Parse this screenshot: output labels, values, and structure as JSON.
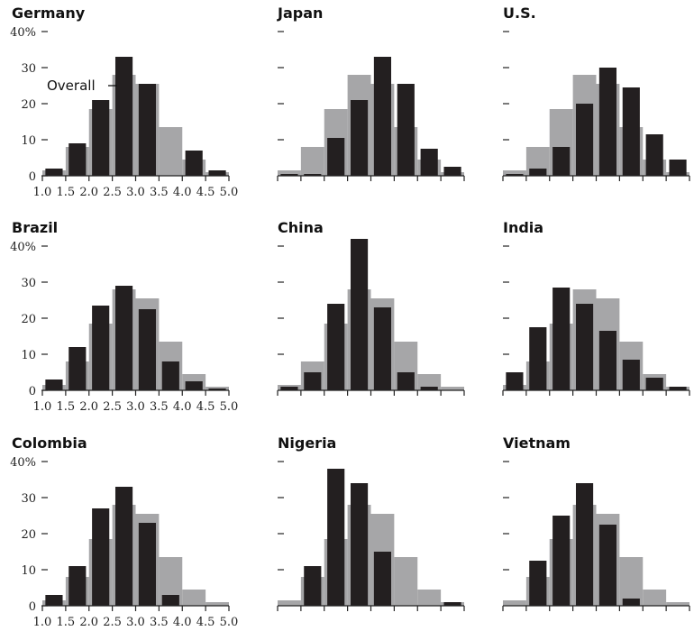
{
  "chart_data": {
    "type": "bar",
    "bins": [
      "1.0",
      "1.5",
      "2.0",
      "2.5",
      "3.0",
      "3.5",
      "4.0",
      "4.5",
      "5.0"
    ],
    "y_ticks": [
      "40%",
      "30",
      "20",
      "10",
      "0"
    ],
    "ylim": [
      0,
      40
    ],
    "annotation": "Overall",
    "colors": {
      "overall": "#a6a6a8",
      "country": "#231f20"
    },
    "panels": [
      {
        "title": "Germany",
        "show_tick_labels": true,
        "overall": [
          1.5,
          8,
          18.5,
          28,
          25.5,
          13.5,
          4.5,
          1
        ],
        "country": [
          2,
          9,
          21,
          33,
          25.5,
          0,
          7,
          1.5
        ]
      },
      {
        "title": "Japan",
        "show_tick_labels": false,
        "overall": [
          1.5,
          8,
          18.5,
          28,
          25.5,
          13.5,
          4.5,
          1
        ],
        "country": [
          0.5,
          0.5,
          10.5,
          21,
          33,
          25.5,
          7.5,
          2.5
        ]
      },
      {
        "title": "U.S.",
        "show_tick_labels": false,
        "overall": [
          1.5,
          8,
          18.5,
          28,
          25.5,
          13.5,
          4.5,
          1
        ],
        "country": [
          0.5,
          2,
          8,
          20,
          30,
          24.5,
          11.5,
          4.5
        ]
      },
      {
        "title": "Brazil",
        "show_tick_labels": true,
        "overall": [
          1.5,
          8,
          18.5,
          28,
          25.5,
          13.5,
          4.5,
          1
        ],
        "country": [
          3,
          12,
          23.5,
          29,
          22.5,
          8,
          2.5,
          0.5
        ]
      },
      {
        "title": "China",
        "show_tick_labels": false,
        "overall": [
          1.5,
          8,
          18.5,
          28,
          25.5,
          13.5,
          4.5,
          1
        ],
        "country": [
          1,
          5,
          24,
          42,
          23,
          5,
          1,
          0
        ]
      },
      {
        "title": "India",
        "show_tick_labels": false,
        "overall": [
          1.5,
          8,
          18.5,
          28,
          25.5,
          13.5,
          4.5,
          1
        ],
        "country": [
          5,
          17.5,
          28.5,
          24,
          16.5,
          8.5,
          3.5,
          1
        ]
      },
      {
        "title": "Colombia",
        "show_tick_labels": true,
        "overall": [
          1.5,
          8,
          18.5,
          28,
          25.5,
          13.5,
          4.5,
          1
        ],
        "country": [
          3,
          11,
          27,
          33,
          23,
          3,
          0,
          0
        ]
      },
      {
        "title": "Nigeria",
        "show_tick_labels": false,
        "overall": [
          1.5,
          8,
          18.5,
          28,
          25.5,
          13.5,
          4.5,
          1
        ],
        "country": [
          0,
          11,
          38,
          34,
          15,
          0,
          0,
          1
        ]
      },
      {
        "title": "Vietnam",
        "show_tick_labels": false,
        "overall": [
          1.5,
          8,
          18.5,
          28,
          25.5,
          13.5,
          4.5,
          1
        ],
        "country": [
          0,
          12.5,
          25,
          34,
          22.5,
          2,
          0,
          0
        ]
      }
    ]
  }
}
